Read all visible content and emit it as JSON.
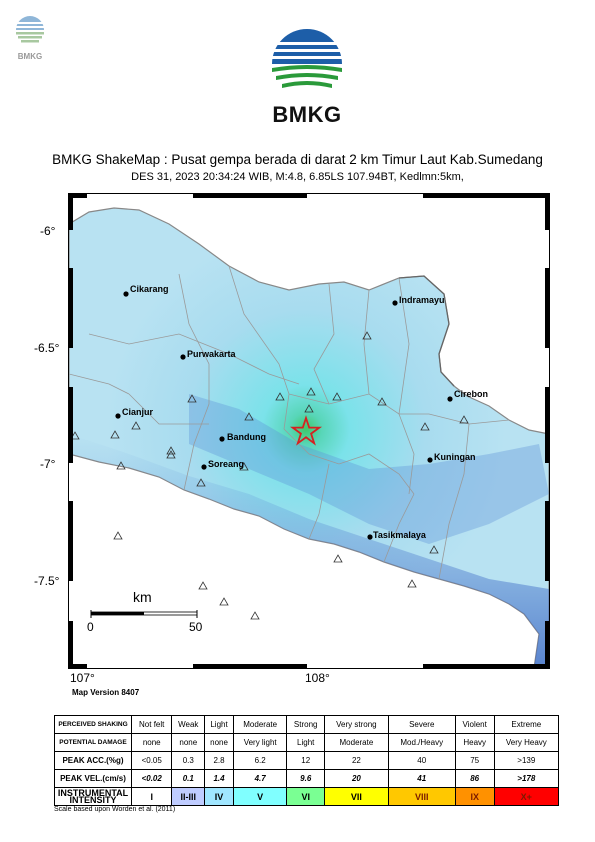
{
  "header": {
    "small_logo_text": "BMKG",
    "big_logo_text": "BMKG",
    "title": "BMKG ShakeMap : Pusat gempa berada di darat 2 km Timur Laut Kab.Sumedang",
    "subtitle": "DES 31, 2023 20:34:24 WIB, M:4.8, 6.85LS 107.94BT, Kedlmn:5km,"
  },
  "map": {
    "lat_ticks": [
      "-6°",
      "-6.5°",
      "-7°",
      "-7.5°"
    ],
    "lon_ticks": [
      "107°",
      "108°"
    ],
    "places": [
      {
        "name": "Cikarang"
      },
      {
        "name": "Indramayu"
      },
      {
        "name": "Purwakarta"
      },
      {
        "name": "Cirebon"
      },
      {
        "name": "Cianjur"
      },
      {
        "name": "Bandung"
      },
      {
        "name": "Kuningan"
      },
      {
        "name": "Soreang"
      },
      {
        "name": "Tasikmalaya"
      }
    ],
    "scale_bar": {
      "unit": "km",
      "start": "0",
      "end": "50"
    },
    "epicenter_color": "#d62020",
    "land_color": "#a8dcef",
    "sea_color": "#ffffff",
    "version": "Map Version 8407"
  },
  "legend": {
    "rows": [
      {
        "label": "PERCEIVED SHAKING",
        "cells": [
          "Not felt",
          "Weak",
          "Light",
          "Moderate",
          "Strong",
          "Very strong",
          "Severe",
          "Violent",
          "Extreme"
        ]
      },
      {
        "label": "POTENTIAL DAMAGE",
        "cells": [
          "none",
          "none",
          "none",
          "Very light",
          "Light",
          "Moderate",
          "Mod./Heavy",
          "Heavy",
          "Very Heavy"
        ]
      },
      {
        "label": "PEAK ACC.(%g)",
        "cells": [
          "<0.05",
          "0.3",
          "2.8",
          "6.2",
          "12",
          "22",
          "40",
          "75",
          ">139"
        ]
      },
      {
        "label": "PEAK VEL.(cm/s)",
        "cells": [
          "<0.02",
          "0.1",
          "1.4",
          "4.7",
          "9.6",
          "20",
          "41",
          "86",
          ">178"
        ]
      },
      {
        "label": "INSTRUMENTAL INTENSITY",
        "cells": [
          "I",
          "II-III",
          "IV",
          "V",
          "VI",
          "VII",
          "VIII",
          "IX",
          "X+"
        ]
      }
    ],
    "intensity_colors": [
      "#ffffff",
      "#bfccff",
      "#a0e6ff",
      "#80ffff",
      "#7aff93",
      "#ffff00",
      "#ffc800",
      "#ff9100",
      "#ff0000"
    ],
    "credit": "Scale based upon Worden et al. (2011)"
  }
}
